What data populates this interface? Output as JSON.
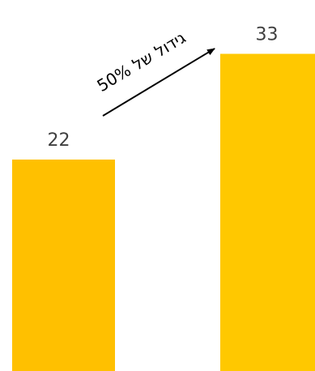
{
  "chart_data": {
    "type": "bar",
    "categories": [
      "",
      ""
    ],
    "values": [
      22,
      33
    ],
    "ylim": [
      0,
      37
    ],
    "grid": false,
    "colors": [
      "#FFC000",
      "#FFC800"
    ],
    "data_labels": [
      "22",
      "33"
    ],
    "annotation": {
      "text": "גידול של 50%",
      "arrow": "from first bar to second bar"
    }
  }
}
